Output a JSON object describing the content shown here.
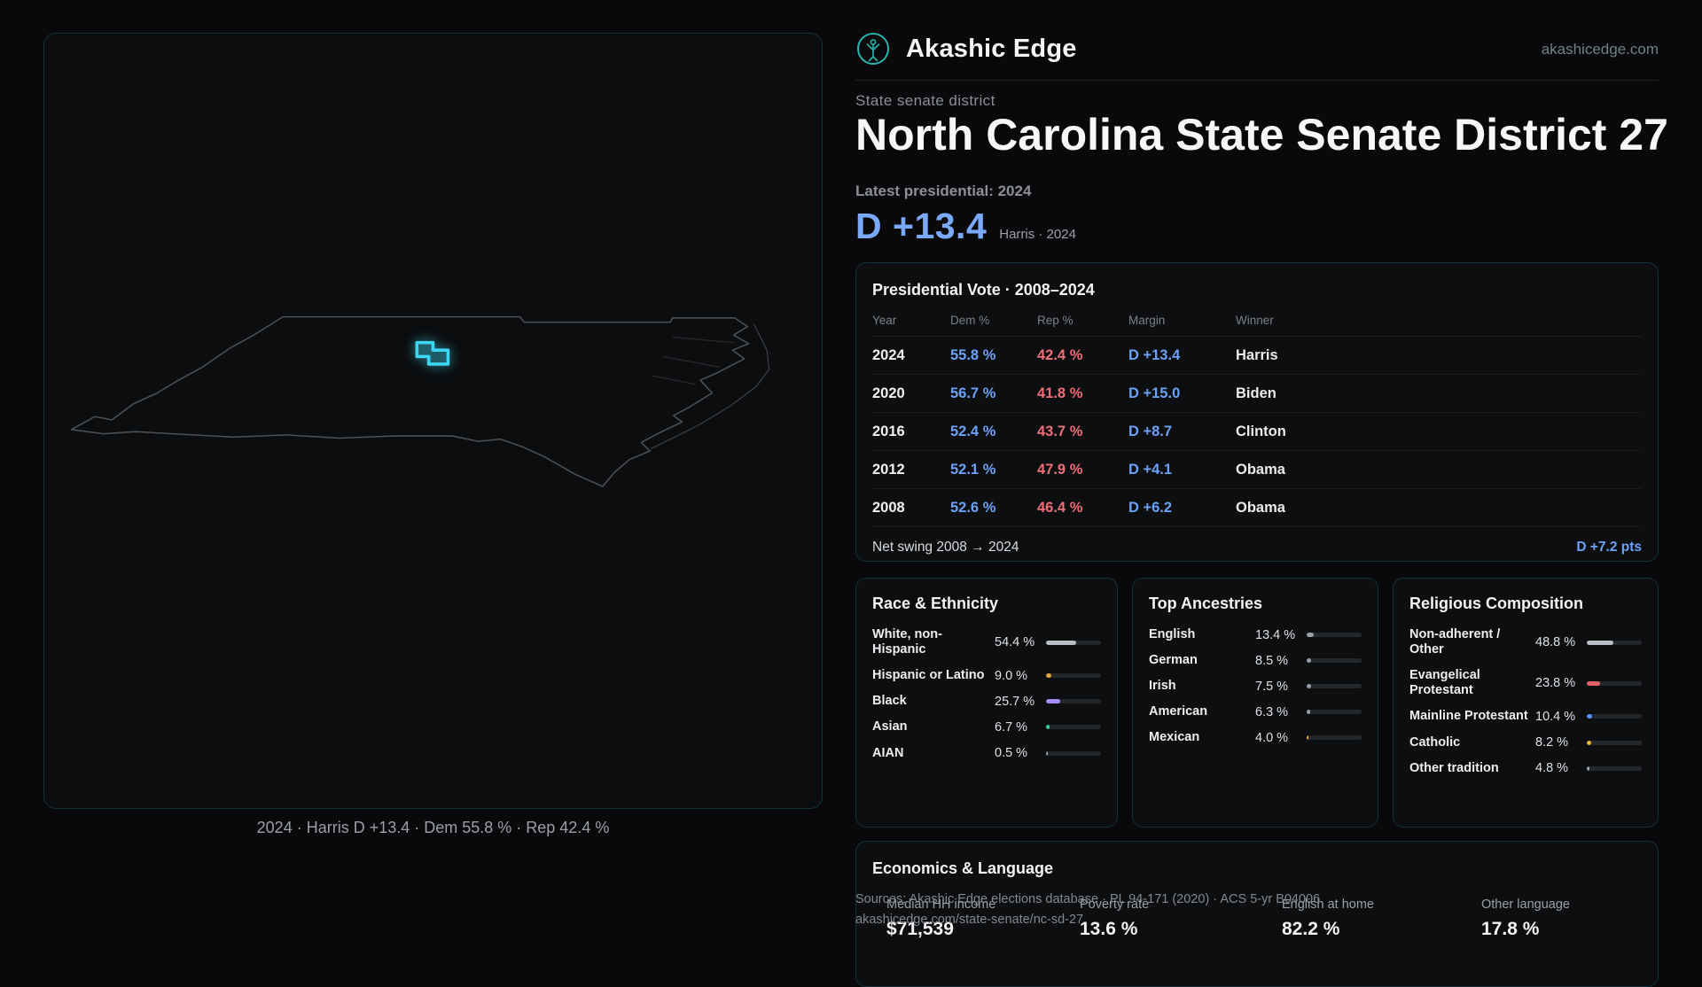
{
  "brand": {
    "name": "Akashic Edge",
    "domain": "akashicedge.com",
    "accent": "#2bb3ad"
  },
  "map": {
    "caption": "2024 · Harris D +13.4 · Dem 55.8 % · Rep 42.4 %",
    "district_color": "#3dd6f2"
  },
  "header": {
    "kicker": "State senate district",
    "title": "North Carolina State Senate District 27",
    "latest_label": "Latest presidential: 2024",
    "margin_value": "D +13.4",
    "margin_note": "Harris · 2024"
  },
  "presidential": {
    "title": "Presidential Vote · 2008–2024",
    "columns": {
      "year": "Year",
      "dem": "Dem %",
      "rep": "Rep %",
      "margin": "Margin",
      "winner": "Winner"
    },
    "rows": [
      {
        "year": "2024",
        "dem": "55.8 %",
        "rep": "42.4 %",
        "margin": "D +13.4",
        "winner": "Harris"
      },
      {
        "year": "2020",
        "dem": "56.7 %",
        "rep": "41.8 %",
        "margin": "D +15.0",
        "winner": "Biden"
      },
      {
        "year": "2016",
        "dem": "52.4 %",
        "rep": "43.7 %",
        "margin": "D +8.7",
        "winner": "Clinton"
      },
      {
        "year": "2012",
        "dem": "52.1 %",
        "rep": "47.9 %",
        "margin": "D +4.1",
        "winner": "Obama"
      },
      {
        "year": "2008",
        "dem": "52.6 %",
        "rep": "46.4 %",
        "margin": "D +6.2",
        "winner": "Obama"
      }
    ],
    "net_swing_label": "Net swing 2008 → 2024",
    "net_swing_value": "D +7.2 pts"
  },
  "demographics": [
    {
      "title": "Race & Ethnicity",
      "rows": [
        {
          "label": "White, non-Hispanic",
          "value": "54.4 %",
          "pct": 54.4,
          "color": "#b8bec5"
        },
        {
          "label": "Hispanic or Latino",
          "value": "9.0 %",
          "pct": 9.0,
          "color": "#e8a23d"
        },
        {
          "label": "Black",
          "value": "25.7 %",
          "pct": 25.7,
          "color": "#a78bfa"
        },
        {
          "label": "Asian",
          "value": "6.7 %",
          "pct": 6.7,
          "color": "#35cf93"
        },
        {
          "label": "AIAN",
          "value": "0.5 %",
          "pct": 0.5,
          "color": "#9aa3ad"
        }
      ]
    },
    {
      "title": "Top Ancestries",
      "rows": [
        {
          "label": "English",
          "value": "13.4 %",
          "pct": 13.4,
          "color": "#98a1ab"
        },
        {
          "label": "German",
          "value": "8.5 %",
          "pct": 8.5,
          "color": "#98a1ab"
        },
        {
          "label": "Irish",
          "value": "7.5 %",
          "pct": 7.5,
          "color": "#98a1ab"
        },
        {
          "label": "American",
          "value": "6.3 %",
          "pct": 6.3,
          "color": "#98a1ab"
        },
        {
          "label": "Mexican",
          "value": "4.0 %",
          "pct": 4.0,
          "color": "#e8a23d"
        }
      ]
    },
    {
      "title": "Religious Composition",
      "rows": [
        {
          "label": "Non-adherent / Other",
          "value": "48.8 %",
          "pct": 48.8,
          "color": "#b8bec5"
        },
        {
          "label": "Evangelical Protestant",
          "value": "23.8 %",
          "pct": 23.8,
          "color": "#e2606a"
        },
        {
          "label": "Mainline Protestant",
          "value": "10.4 %",
          "pct": 10.4,
          "color": "#5b8ff0"
        },
        {
          "label": "Catholic",
          "value": "8.2 %",
          "pct": 8.2,
          "color": "#e7b73c"
        },
        {
          "label": "Other tradition",
          "value": "4.8 %",
          "pct": 4.8,
          "color": "#9aa3ad"
        }
      ]
    }
  ],
  "economics": {
    "title": "Economics & Language",
    "stats": [
      {
        "label": "Median HH income",
        "value": "$71,539"
      },
      {
        "label": "Poverty rate",
        "value": "13.6 %"
      },
      {
        "label": "English at home",
        "value": "82.2 %"
      },
      {
        "label": "Other language",
        "value": "17.8 %"
      }
    ]
  },
  "footer": {
    "sources": "Sources: Akashic Edge elections database · PL 94-171 (2020) · ACS 5-yr B04006",
    "permalink": "akashicedge.com/state-senate/nc-sd-27"
  }
}
